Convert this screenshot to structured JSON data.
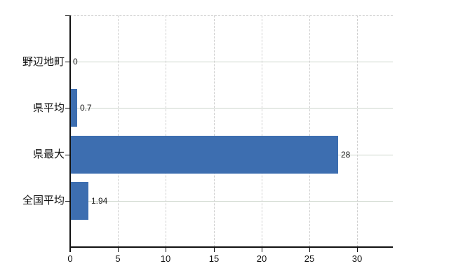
{
  "chart_data": {
    "type": "bar",
    "orientation": "horizontal",
    "title": "",
    "xlabel": "",
    "ylabel": "",
    "categories": [
      "野辺地町",
      "県平均",
      "県最大",
      "全国平均"
    ],
    "values": [
      0,
      0.7,
      28,
      1.94
    ],
    "value_labels": [
      "0",
      "0.7",
      "28",
      "1.94"
    ],
    "x_ticks": [
      0,
      5,
      10,
      15,
      20,
      25,
      30
    ],
    "x_tick_labels": [
      "0",
      "5",
      "10",
      "15",
      "20",
      "25",
      "30"
    ],
    "xlim": [
      0,
      33.7
    ],
    "grid": "on",
    "legend": "none",
    "colors": {
      "bar": "#3d6eb0",
      "h_grid": "#ccd5cb",
      "v_grid": "#cfcfcf",
      "axis": "#111111",
      "value_text": "#222222",
      "tick_text": "#111111",
      "background": "#ffffff"
    }
  }
}
